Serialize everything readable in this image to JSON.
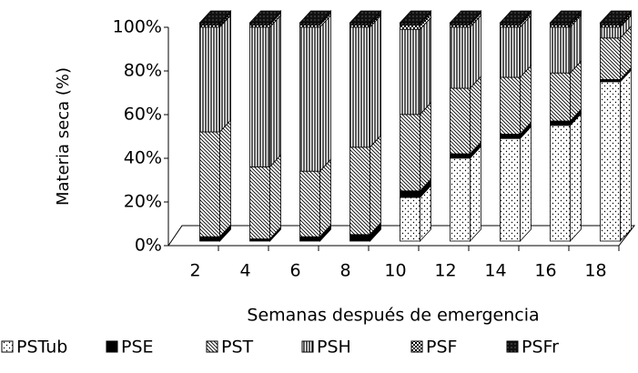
{
  "chart_data": {
    "type": "bar3d_stacked",
    "x_label": "Semanas después de emergencia",
    "y_label": "Materia seca (%)",
    "categories": [
      "2",
      "4",
      "6",
      "8",
      "10",
      "12",
      "14",
      "16",
      "18"
    ],
    "ylim": [
      0,
      100
    ],
    "yticks": [
      {
        "value": 0,
        "label": "0%"
      },
      {
        "value": 20,
        "label": "20%"
      },
      {
        "value": 40,
        "label": "40%"
      },
      {
        "value": 60,
        "label": "60%"
      },
      {
        "value": 80,
        "label": "80%"
      },
      {
        "value": 100,
        "label": "100%"
      }
    ],
    "legend": "bottom",
    "series": [
      {
        "name": "PSTub",
        "color": "#ffffff",
        "pattern": "dots",
        "values": [
          0,
          0,
          0,
          0,
          20,
          38,
          47,
          53,
          73
        ]
      },
      {
        "name": "PSE",
        "color": "#000000",
        "pattern": "solid",
        "values": [
          2,
          1,
          2,
          3,
          3,
          2,
          2,
          2,
          1
        ]
      },
      {
        "name": "PST",
        "color": "#ffffff",
        "pattern": "diagonal",
        "values": [
          48,
          33,
          30,
          40,
          35,
          30,
          26,
          22,
          19
        ]
      },
      {
        "name": "PSH",
        "color": "#ffffff",
        "pattern": "vertical",
        "values": [
          48,
          64,
          66,
          55,
          39,
          28,
          23,
          21,
          5
        ]
      },
      {
        "name": "PSF",
        "color": "#ffffff",
        "pattern": "checker",
        "values": [
          1,
          1,
          1,
          1,
          2,
          1,
          1,
          1,
          1
        ]
      },
      {
        "name": "PSFr",
        "color": "#000000",
        "pattern": "dark",
        "values": [
          1,
          1,
          1,
          1,
          1,
          1,
          1,
          1,
          1
        ]
      }
    ]
  }
}
